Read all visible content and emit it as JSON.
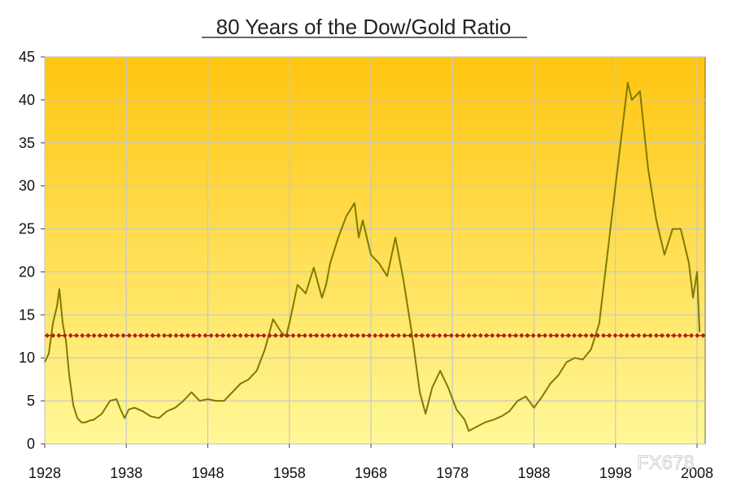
{
  "watermark": "FX678",
  "chart_data": {
    "type": "line",
    "title": "80 Years of the Dow/Gold Ratio",
    "xlabel": "",
    "ylabel": "",
    "xlim": [
      1928,
      2009
    ],
    "ylim": [
      0,
      45
    ],
    "x_ticks": [
      "1928",
      "1938",
      "1948",
      "1958",
      "1968",
      "1978",
      "1988",
      "1998",
      "2008"
    ],
    "y_ticks": [
      "0",
      "5",
      "10",
      "15",
      "20",
      "25",
      "30",
      "35",
      "40",
      "45"
    ],
    "grid": true,
    "background_gradient": [
      "#FFC510",
      "#FFF898"
    ],
    "series": [
      {
        "color": "#7F7A00",
        "x": [
          1928.0,
          1928.5,
          1929.0,
          1929.5,
          1929.8,
          1930.2,
          1930.6,
          1931.0,
          1931.5,
          1932.0,
          1932.5,
          1933.0,
          1933.5,
          1934.0,
          1935.0,
          1936.0,
          1936.8,
          1937.3,
          1937.8,
          1938.3,
          1939.0,
          1940.0,
          1941.0,
          1942.0,
          1943.0,
          1944.0,
          1945.0,
          1946.0,
          1947.0,
          1948.0,
          1949.0,
          1950.0,
          1951.0,
          1952.0,
          1953.0,
          1954.0,
          1955.0,
          1956.0,
          1957.0,
          1957.6,
          1958.0,
          1959.0,
          1960.0,
          1961.0,
          1962.0,
          1962.5,
          1963.0,
          1964.0,
          1965.0,
          1966.0,
          1966.5,
          1967.0,
          1968.0,
          1969.0,
          1970.0,
          1971.0,
          1972.0,
          1973.0,
          1974.0,
          1974.7,
          1975.5,
          1976.5,
          1977.5,
          1978.5,
          1979.5,
          1980.0,
          1981.0,
          1982.0,
          1983.0,
          1984.0,
          1985.0,
          1986.0,
          1987.0,
          1988.0,
          1989.0,
          1990.0,
          1991.0,
          1992.0,
          1993.0,
          1994.0,
          1995.0,
          1996.0,
          1997.0,
          1998.0,
          1999.0,
          1999.5,
          2000.0,
          2001.0,
          2002.0,
          2003.0,
          2004.0,
          2005.0,
          2006.0,
          2007.0,
          2007.5,
          2008.0,
          2008.3
        ],
        "y": [
          9.5,
          10.5,
          14.0,
          16.0,
          18.0,
          14.0,
          12.0,
          8.0,
          4.5,
          3.0,
          2.5,
          2.5,
          2.7,
          2.8,
          3.5,
          5.0,
          5.2,
          4.0,
          3.0,
          4.0,
          4.2,
          3.8,
          3.2,
          3.0,
          3.8,
          4.2,
          5.0,
          6.0,
          5.0,
          5.2,
          5.0,
          5.0,
          6.0,
          7.0,
          7.5,
          8.5,
          11.0,
          14.5,
          13.0,
          12.5,
          14.0,
          18.5,
          17.5,
          20.5,
          17.0,
          18.5,
          21.0,
          24.0,
          26.5,
          28.0,
          24.0,
          26.0,
          22.0,
          21.0,
          19.5,
          24.0,
          19.0,
          13.0,
          6.0,
          3.5,
          6.5,
          8.5,
          6.5,
          4.0,
          2.8,
          1.5,
          2.0,
          2.5,
          2.8,
          3.2,
          3.8,
          5.0,
          5.5,
          4.2,
          5.5,
          7.0,
          8.0,
          9.5,
          10.0,
          9.8,
          11.0,
          14.0,
          22.0,
          30.0,
          38.0,
          42.0,
          40.0,
          41.0,
          32.0,
          26.0,
          22.0,
          25.0,
          25.0,
          21.0,
          17.0,
          20.0,
          13.0
        ]
      },
      {
        "color": "#B01E1E",
        "x": [
          1928,
          2009
        ],
        "y": [
          12.6,
          12.6
        ]
      }
    ]
  }
}
